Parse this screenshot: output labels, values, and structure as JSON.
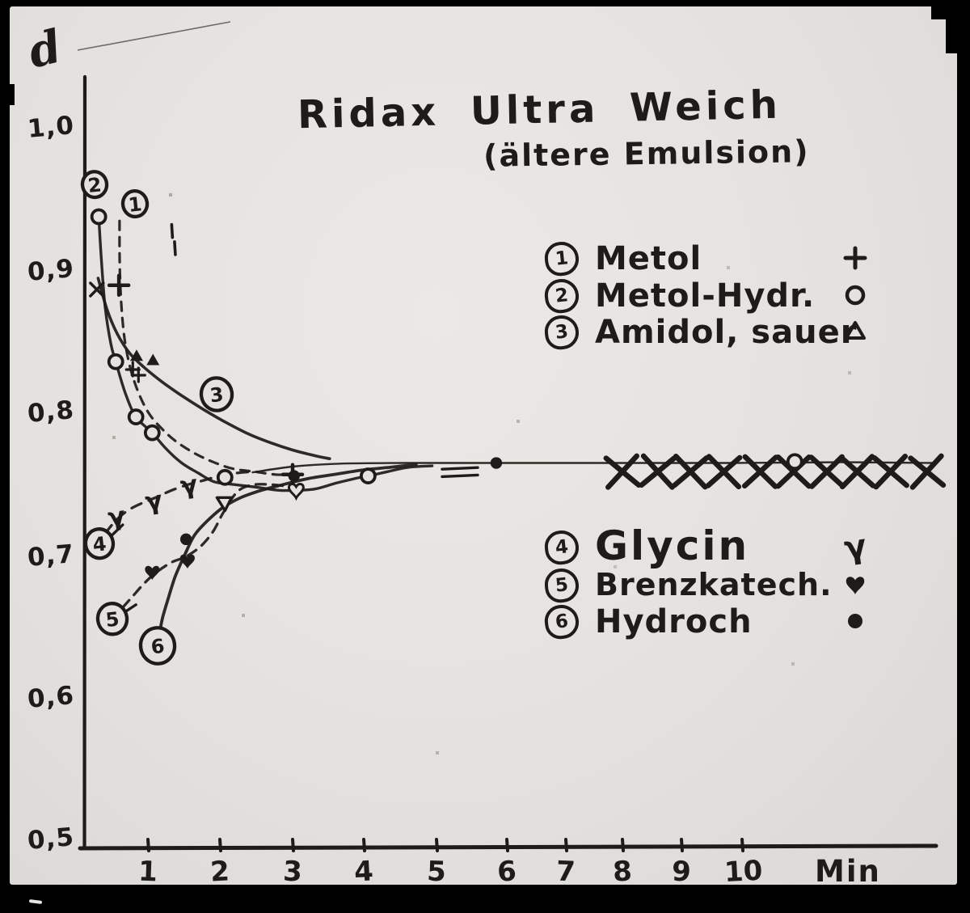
{
  "chart_data": {
    "type": "line",
    "title": "Ridax Ultra Weich",
    "subtitle": "(ältere Emulsion)",
    "ylabel": "d",
    "xlabel": "Min",
    "grid": false,
    "xlim": [
      0,
      13.3
    ],
    "ylim": [
      0.5,
      1.05
    ],
    "x_ticks": [
      "1",
      "2",
      "3",
      "4",
      "5",
      "6",
      "7",
      "8",
      "9",
      "10"
    ],
    "x_tick_values": [
      1,
      2,
      3,
      4,
      5,
      6,
      7,
      8,
      9,
      10
    ],
    "y_ticks": [
      "1,0",
      "0,9",
      "0,8",
      "0,7",
      "0,6",
      "0,5"
    ],
    "y_tick_values": [
      1.0,
      0.9,
      0.8,
      0.7,
      0.6,
      0.5
    ],
    "legend_top": [
      {
        "num": "1",
        "label": "Metol",
        "symbol": "plus"
      },
      {
        "num": "2",
        "label": "Metol-Hydr.",
        "symbol": "circle-open"
      },
      {
        "num": "3",
        "label": "Amidol, sauer",
        "symbol": "triangle-open"
      }
    ],
    "legend_bottom": [
      {
        "num": "4",
        "label": "Glycin",
        "symbol": "gamma"
      },
      {
        "num": "5",
        "label": "Brenzkatech.",
        "symbol": "heart-filled"
      },
      {
        "num": "6",
        "label": "Hydroch",
        "symbol": "dot-filled"
      }
    ],
    "series": [
      {
        "id": "metol",
        "name": "Metol",
        "line": "dashed",
        "points": [
          [
            0.55,
            0.936
          ],
          [
            0.55,
            0.915
          ],
          [
            0.56,
            0.893
          ],
          [
            0.59,
            0.87
          ],
          [
            0.64,
            0.85
          ],
          [
            0.73,
            0.831
          ],
          [
            0.86,
            0.814
          ],
          [
            1.02,
            0.8
          ],
          [
            1.19,
            0.79
          ],
          [
            1.39,
            0.781
          ],
          [
            1.64,
            0.773
          ],
          [
            1.89,
            0.767
          ],
          [
            2.18,
            0.762
          ],
          [
            2.48,
            0.76
          ],
          [
            2.76,
            0.758
          ],
          [
            3.0,
            0.758
          ]
        ],
        "markers": [
          {
            "type": "plus",
            "pts": [
              [
                0.54,
                0.891
              ],
              [
                3.0,
                0.758
              ]
            ]
          }
        ]
      },
      {
        "id": "metol-hydr",
        "name": "Metol-Hydr.",
        "line": "solid",
        "points": [
          [
            0.22,
            0.939
          ],
          [
            0.26,
            0.91
          ],
          [
            0.32,
            0.876
          ],
          [
            0.41,
            0.85
          ],
          [
            0.49,
            0.837
          ],
          [
            0.64,
            0.815
          ],
          [
            0.81,
            0.798
          ],
          [
            1.06,
            0.787
          ],
          [
            1.25,
            0.776
          ],
          [
            1.47,
            0.766
          ],
          [
            1.7,
            0.759
          ],
          [
            1.92,
            0.753
          ],
          [
            2.2,
            0.751
          ],
          [
            2.53,
            0.749
          ],
          [
            2.81,
            0.747
          ],
          [
            3.06,
            0.747
          ],
          [
            3.32,
            0.748
          ],
          [
            3.61,
            0.752
          ],
          [
            3.86,
            0.755
          ],
          [
            4.06,
            0.757
          ],
          [
            4.33,
            0.76
          ],
          [
            4.61,
            0.763
          ],
          [
            4.94,
            0.764
          ]
        ],
        "markers": [
          {
            "type": "circle-open",
            "pts": [
              [
                0.22,
                0.939
              ],
              [
                0.49,
                0.837
              ],
              [
                0.81,
                0.798
              ],
              [
                1.06,
                0.787
              ],
              [
                2.07,
                0.756
              ],
              [
                4.06,
                0.757
              ],
              [
                10.87,
                0.767
              ]
            ]
          }
        ]
      },
      {
        "id": "amidol",
        "name": "Amidol, sauer",
        "line": "solid",
        "points": [
          [
            0.21,
            0.896
          ],
          [
            0.35,
            0.874
          ],
          [
            0.51,
            0.857
          ],
          [
            0.71,
            0.843
          ],
          [
            0.94,
            0.833
          ],
          [
            1.19,
            0.823
          ],
          [
            1.47,
            0.813
          ],
          [
            1.78,
            0.803
          ],
          [
            2.09,
            0.794
          ],
          [
            2.4,
            0.786
          ],
          [
            2.7,
            0.78
          ],
          [
            3.0,
            0.775
          ],
          [
            3.32,
            0.771
          ],
          [
            3.52,
            0.769
          ]
        ],
        "markers": [
          {
            "type": "triangle-filled-small",
            "pts": [
              [
                0.82,
                0.841
              ],
              [
                1.07,
                0.838
              ]
            ]
          }
        ]
      },
      {
        "id": "glycin",
        "name": "Glycin",
        "line": "dashed",
        "points": [
          [
            0.32,
            0.717
          ],
          [
            0.49,
            0.726
          ],
          [
            0.68,
            0.733
          ],
          [
            0.9,
            0.738
          ],
          [
            1.11,
            0.742
          ],
          [
            1.33,
            0.747
          ],
          [
            1.56,
            0.751
          ],
          [
            1.78,
            0.754
          ],
          [
            2.0,
            0.757
          ],
          [
            2.23,
            0.759
          ],
          [
            2.44,
            0.76
          ]
        ],
        "markers": [
          {
            "type": "gamma",
            "pts": [
              [
                0.5,
                0.729
              ],
              [
                1.08,
                0.74
              ],
              [
                1.57,
                0.751
              ]
            ]
          }
        ]
      },
      {
        "id": "brenzkatechin",
        "name": "Brenzkatech.",
        "line": "dashed",
        "points": [
          [
            0.6,
            0.665
          ],
          [
            0.76,
            0.673
          ],
          [
            0.94,
            0.682
          ],
          [
            1.12,
            0.69
          ],
          [
            1.33,
            0.697
          ],
          [
            1.53,
            0.701
          ],
          [
            1.73,
            0.708
          ],
          [
            1.9,
            0.718
          ],
          [
            2.03,
            0.73
          ],
          [
            2.16,
            0.741
          ],
          [
            2.29,
            0.748
          ],
          [
            2.48,
            0.751
          ],
          [
            2.7,
            0.751
          ],
          [
            2.89,
            0.75
          ],
          [
            3.07,
            0.748
          ]
        ],
        "markers": [
          {
            "type": "heart-filled",
            "pts": [
              [
                1.06,
                0.69
              ],
              [
                1.55,
                0.698
              ]
            ]
          },
          {
            "type": "triangle-down-open",
            "pts": [
              [
                2.06,
                0.738
              ]
            ]
          },
          {
            "type": "heart-open",
            "pts": [
              [
                3.05,
                0.747
              ]
            ]
          }
        ]
      },
      {
        "id": "hydrochinon",
        "name": "Hydroch",
        "line": "solid",
        "points": [
          [
            1.15,
            0.643
          ],
          [
            1.2,
            0.657
          ],
          [
            1.28,
            0.671
          ],
          [
            1.38,
            0.687
          ],
          [
            1.51,
            0.702
          ],
          [
            1.65,
            0.716
          ],
          [
            1.83,
            0.726
          ],
          [
            2.04,
            0.735
          ],
          [
            2.29,
            0.742
          ],
          [
            2.57,
            0.747
          ],
          [
            2.87,
            0.751
          ],
          [
            3.2,
            0.755
          ],
          [
            3.58,
            0.758
          ],
          [
            3.97,
            0.761
          ],
          [
            4.36,
            0.763
          ],
          [
            4.72,
            0.765
          ]
        ],
        "markers": [
          {
            "type": "dot-filled",
            "pts": [
              [
                1.53,
                0.713
              ],
              [
                3.02,
                0.757
              ],
              [
                5.85,
                0.766
              ]
            ]
          }
        ]
      },
      {
        "id": "converged",
        "name": "converged-asymptote",
        "line": "solid",
        "points": [
          [
            2.45,
            0.7595
          ],
          [
            3.0,
            0.7635
          ],
          [
            3.65,
            0.7655
          ],
          [
            4.55,
            0.766
          ],
          [
            5.85,
            0.766
          ],
          [
            7.9,
            0.766
          ],
          [
            9.8,
            0.766
          ],
          [
            11.6,
            0.7665
          ],
          [
            13.15,
            0.766
          ]
        ],
        "markers": []
      }
    ],
    "curve_labels": [
      {
        "num": "2",
        "t": 0.154,
        "d": 0.9615
      },
      {
        "num": "1",
        "t": 0.795,
        "d": 0.948
      },
      {
        "num": "3",
        "t": 1.955,
        "d": 0.814
      },
      {
        "num": "4",
        "t": 0.23,
        "d": 0.71
      },
      {
        "num": "5",
        "t": 0.436,
        "d": 0.657
      },
      {
        "num": "6",
        "t": 1.135,
        "d": 0.638
      }
    ],
    "x_cross_marks": {
      "d": 0.76,
      "t": [
        8.0,
        8.6,
        9.15,
        9.7,
        10.3,
        10.85,
        11.4,
        11.9,
        12.45,
        13.05
      ]
    },
    "stray_marks": [
      {
        "type": "x-small",
        "t": 0.19,
        "d": 0.888
      },
      {
        "type": "plus-small",
        "t": 0.76,
        "d": 0.832
      },
      {
        "type": "plus-small",
        "t": 0.85,
        "d": 0.828
      },
      {
        "type": "dash-v",
        "t": 1.33,
        "d": 0.929
      },
      {
        "type": "dash-v",
        "t": 1.37,
        "d": 0.917
      },
      {
        "type": "dash-h",
        "t": 5.08,
        "d": 0.7617
      },
      {
        "type": "dash-h",
        "t": 5.08,
        "d": 0.7565
      }
    ],
    "colors": {
      "ink": "#1d1c19",
      "paper": "#e4e2de"
    }
  }
}
